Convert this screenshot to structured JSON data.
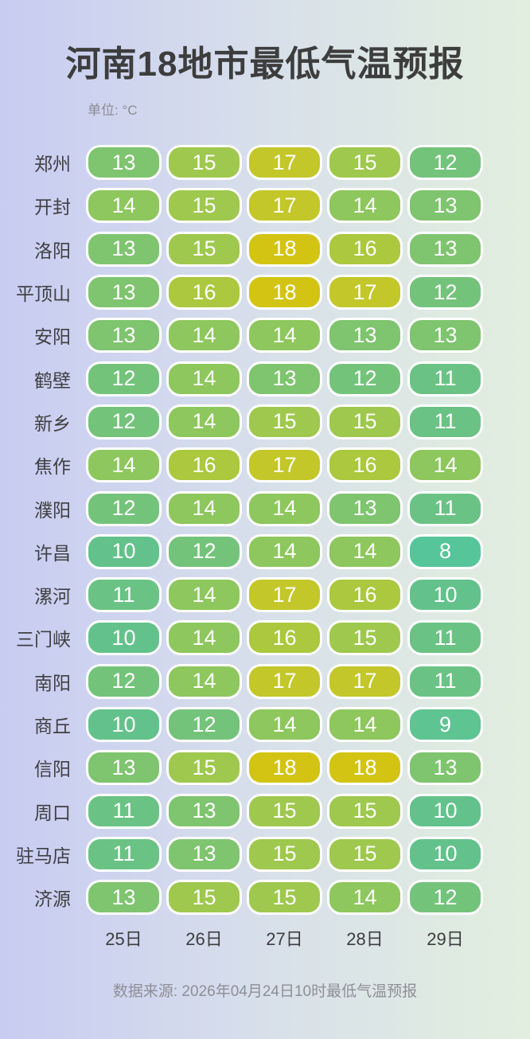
{
  "page": {
    "background_left_color": "#c8ccf2",
    "background_right_color": "#e2efde"
  },
  "header": {
    "title": "河南18地市最低气温预报",
    "unit_label": "单位: °C"
  },
  "footer": {
    "source": "数据来源: 2026年04月24日10时最低气温预报"
  },
  "chart_data": {
    "type": "heatmap",
    "title": "河南18地市最低气温预报",
    "unit": "°C",
    "columns": [
      "25日",
      "26日",
      "27日",
      "28日",
      "29日"
    ],
    "rows": [
      {
        "city": "郑州",
        "values": [
          13,
          15,
          17,
          15,
          12
        ]
      },
      {
        "city": "开封",
        "values": [
          14,
          15,
          17,
          14,
          13
        ]
      },
      {
        "city": "洛阳",
        "values": [
          13,
          15,
          18,
          16,
          13
        ]
      },
      {
        "city": "平顶山",
        "values": [
          13,
          16,
          18,
          17,
          12
        ]
      },
      {
        "city": "安阳",
        "values": [
          13,
          14,
          14,
          13,
          13
        ]
      },
      {
        "city": "鹤壁",
        "values": [
          12,
          14,
          13,
          12,
          11
        ]
      },
      {
        "city": "新乡",
        "values": [
          12,
          14,
          15,
          15,
          11
        ]
      },
      {
        "city": "焦作",
        "values": [
          14,
          16,
          17,
          16,
          14
        ]
      },
      {
        "city": "濮阳",
        "values": [
          12,
          14,
          14,
          13,
          11
        ]
      },
      {
        "city": "许昌",
        "values": [
          10,
          12,
          14,
          14,
          8
        ]
      },
      {
        "city": "漯河",
        "values": [
          11,
          14,
          17,
          16,
          10
        ]
      },
      {
        "city": "三门峡",
        "values": [
          10,
          14,
          16,
          15,
          11
        ]
      },
      {
        "city": "南阳",
        "values": [
          12,
          14,
          17,
          17,
          11
        ]
      },
      {
        "city": "商丘",
        "values": [
          10,
          12,
          14,
          14,
          9
        ]
      },
      {
        "city": "信阳",
        "values": [
          13,
          15,
          18,
          18,
          13
        ]
      },
      {
        "city": "周口",
        "values": [
          11,
          13,
          15,
          15,
          10
        ]
      },
      {
        "city": "驻马店",
        "values": [
          11,
          13,
          15,
          15,
          10
        ]
      },
      {
        "city": "济源",
        "values": [
          13,
          15,
          15,
          14,
          12
        ]
      }
    ],
    "value_range": [
      8,
      18
    ],
    "color_scale": {
      "8": "#56c69a",
      "9": "#5ec492",
      "10": "#63c28b",
      "11": "#6ac384",
      "12": "#74c37b",
      "13": "#7fc46f",
      "14": "#8dc75d",
      "15": "#9fc84e",
      "16": "#abc83e",
      "17": "#c3c729",
      "18": "#d3c414"
    },
    "pill_text_color": "#ffffff",
    "source": "数据来源: 2026年04月24日10时最低气温预报",
    "legend_position": "none",
    "grid": false
  }
}
